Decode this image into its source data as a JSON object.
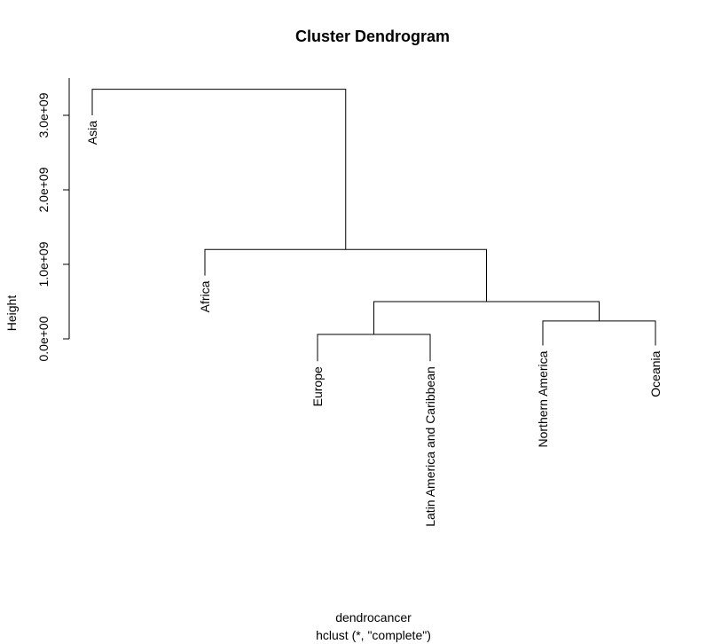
{
  "chart_data": {
    "type": "dendrogram",
    "title": "Cluster Dendrogram",
    "xlabel": "dendrocancer",
    "sublabel": "hclust (*, \"complete\")",
    "ylabel": "Height",
    "yticks": [
      {
        "value": 0,
        "label": "0.0e+00"
      },
      {
        "value": 1000000000,
        "label": "1.0e+09"
      },
      {
        "value": 2000000000,
        "label": "2.0e+09"
      },
      {
        "value": 3000000000,
        "label": "3.0e+09"
      }
    ],
    "ylim": [
      0,
      3500000000
    ],
    "leaves": [
      {
        "label": "Asia",
        "height": 3000000000
      },
      {
        "label": "Africa",
        "height": 850000000
      },
      {
        "label": "Europe",
        "height": -300000000
      },
      {
        "label": "Latin America and Caribbean",
        "height": -300000000
      },
      {
        "label": "Northern America",
        "height": -90000000
      },
      {
        "label": "Oceania",
        "height": -90000000
      }
    ],
    "merges": [
      {
        "left": "leaf:Europe",
        "right": "leaf:Latin America and Caribbean",
        "height": 60000000
      },
      {
        "left": "leaf:Northern America",
        "right": "leaf:Oceania",
        "height": 240000000
      },
      {
        "left": "merge:0",
        "right": "merge:1",
        "height": 500000000
      },
      {
        "left": "leaf:Africa",
        "right": "merge:2",
        "height": 1200000000
      },
      {
        "left": "leaf:Asia",
        "right": "merge:3",
        "height": 3350000000
      }
    ]
  }
}
